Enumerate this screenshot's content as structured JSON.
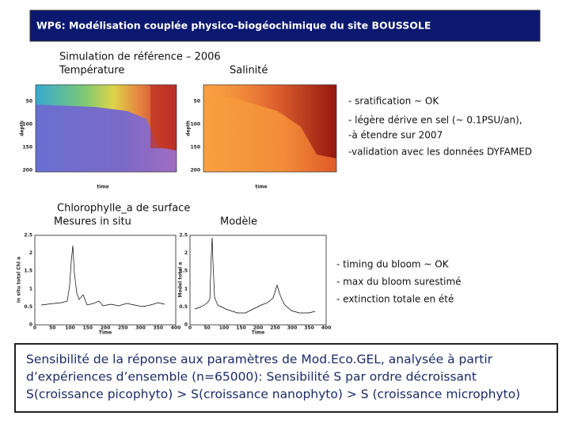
{
  "header": {
    "title": "WP6: Modélisation couplée physico-biogéochimique du site BOUSSOLE"
  },
  "simulation": {
    "title": "Simulation de référence – 2006",
    "panels": [
      {
        "label": "Température"
      },
      {
        "label": "Salinité"
      }
    ],
    "x_label": "time",
    "y_label": "depth",
    "yticks": [
      "50",
      "100",
      "150",
      "200"
    ],
    "notes": [
      "-  sratification ~ OK",
      "-  légère dérive en sel (~ 0.1PSU/an),",
      "-à étendre sur 2007",
      "-validation avec les données DYFAMED"
    ]
  },
  "chlorophyll": {
    "title": "Chlorophylle_a de surface",
    "panels": [
      {
        "label": "Mesures in situ",
        "y_label": "in situ total Chl a"
      },
      {
        "label": "Modèle",
        "y_label": "Model total a"
      }
    ],
    "x_label": "Time",
    "yticks": [
      "2.5",
      "2",
      "1.5",
      "1",
      "0.5",
      "0"
    ],
    "xticks": [
      "0",
      "50",
      "100",
      "150",
      "200",
      "250",
      "300",
      "350",
      "400"
    ],
    "notes": [
      "- timing du bloom ~ OK",
      "- max du bloom surestimé",
      "- extinction totale en été"
    ]
  },
  "summary": {
    "lines": [
      "Sensibilité de la réponse aux paramètres de Mod.Eco.GEL, analysée à partir",
      "d’expériences d’ensemble (n=65000): Sensibilité S par ordre décroissant",
      "S(croissance picophyto) > S(croissance nanophyto) > S (croissance microphyto)"
    ]
  }
}
